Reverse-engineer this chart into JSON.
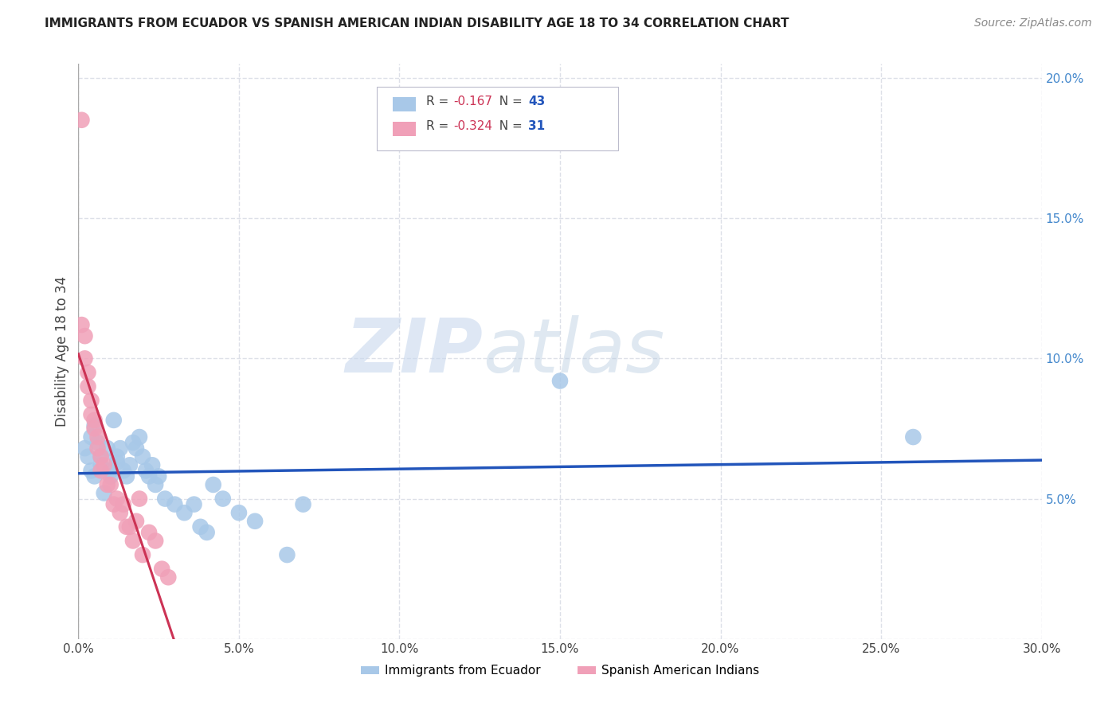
{
  "title": "IMMIGRANTS FROM ECUADOR VS SPANISH AMERICAN INDIAN DISABILITY AGE 18 TO 34 CORRELATION CHART",
  "source": "Source: ZipAtlas.com",
  "ylabel": "Disability Age 18 to 34",
  "xlim": [
    0.0,
    0.3
  ],
  "ylim": [
    0.0,
    0.205
  ],
  "xticks": [
    0.0,
    0.05,
    0.1,
    0.15,
    0.2,
    0.25,
    0.3
  ],
  "yticks_right": [
    0.0,
    0.05,
    0.1,
    0.15,
    0.2
  ],
  "ytick_labels_right": [
    "",
    "5.0%",
    "10.0%",
    "15.0%",
    "20.0%"
  ],
  "xtick_labels": [
    "0.0%",
    "5.0%",
    "10.0%",
    "15.0%",
    "20.0%",
    "25.0%",
    "30.0%"
  ],
  "legend_label1": "Immigrants from Ecuador",
  "legend_label2": "Spanish American Indians",
  "r1": -0.167,
  "n1": 43,
  "r2": -0.324,
  "n2": 31,
  "color_blue": "#a8c8e8",
  "color_pink": "#f0a0b8",
  "color_line_blue": "#2255bb",
  "color_line_pink": "#cc3355",
  "color_line_dashed": "#d0c8d0",
  "watermark_zip": "ZIP",
  "watermark_atlas": "atlas",
  "background_color": "#ffffff",
  "grid_color": "#dde0e8",
  "blue_scatter_x": [
    0.002,
    0.003,
    0.004,
    0.004,
    0.005,
    0.005,
    0.006,
    0.007,
    0.007,
    0.008,
    0.009,
    0.01,
    0.01,
    0.011,
    0.012,
    0.012,
    0.013,
    0.014,
    0.015,
    0.016,
    0.017,
    0.018,
    0.019,
    0.02,
    0.021,
    0.022,
    0.023,
    0.024,
    0.025,
    0.027,
    0.03,
    0.033,
    0.036,
    0.038,
    0.04,
    0.042,
    0.045,
    0.05,
    0.055,
    0.065,
    0.07,
    0.15,
    0.26
  ],
  "blue_scatter_y": [
    0.068,
    0.065,
    0.06,
    0.072,
    0.076,
    0.058,
    0.07,
    0.065,
    0.062,
    0.052,
    0.068,
    0.06,
    0.058,
    0.078,
    0.065,
    0.063,
    0.068,
    0.06,
    0.058,
    0.062,
    0.07,
    0.068,
    0.072,
    0.065,
    0.06,
    0.058,
    0.062,
    0.055,
    0.058,
    0.05,
    0.048,
    0.045,
    0.048,
    0.04,
    0.038,
    0.055,
    0.05,
    0.045,
    0.042,
    0.03,
    0.048,
    0.092,
    0.072
  ],
  "pink_scatter_x": [
    0.001,
    0.001,
    0.002,
    0.002,
    0.003,
    0.003,
    0.004,
    0.004,
    0.005,
    0.005,
    0.006,
    0.006,
    0.007,
    0.007,
    0.008,
    0.009,
    0.01,
    0.011,
    0.012,
    0.013,
    0.014,
    0.015,
    0.016,
    0.017,
    0.018,
    0.019,
    0.02,
    0.022,
    0.024,
    0.026,
    0.028
  ],
  "pink_scatter_y": [
    0.185,
    0.112,
    0.108,
    0.1,
    0.095,
    0.09,
    0.085,
    0.08,
    0.078,
    0.075,
    0.072,
    0.068,
    0.065,
    0.06,
    0.062,
    0.055,
    0.055,
    0.048,
    0.05,
    0.045,
    0.048,
    0.04,
    0.04,
    0.035,
    0.042,
    0.05,
    0.03,
    0.038,
    0.035,
    0.025,
    0.022
  ],
  "legend_r1_color": "#cc3355",
  "legend_n1_color": "#2255bb",
  "title_fontsize": 11,
  "source_fontsize": 10,
  "tick_fontsize": 11,
  "ylabel_fontsize": 12
}
